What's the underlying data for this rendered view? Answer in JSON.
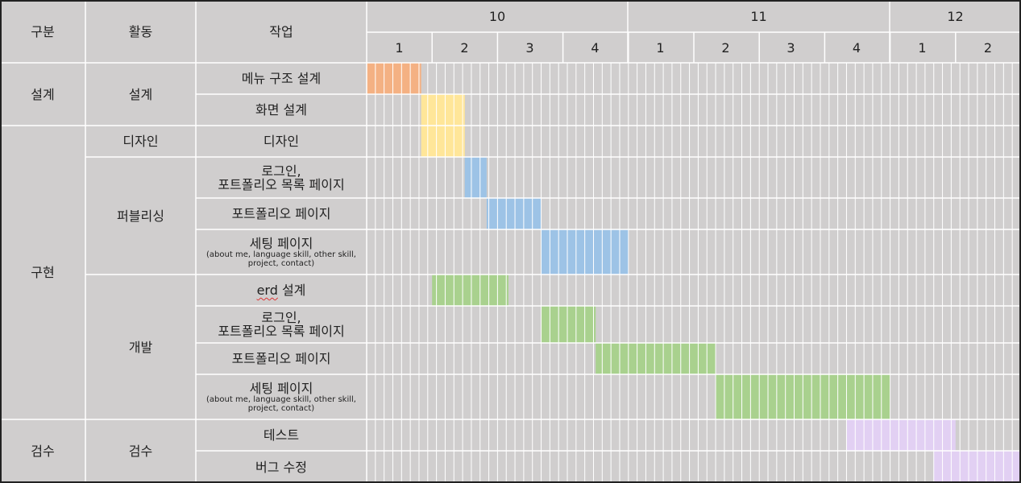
{
  "headers": {
    "category": "구분",
    "activity": "활동",
    "task": "작업"
  },
  "months": [
    {
      "label": "10",
      "weeks": [
        "1",
        "2",
        "3",
        "4"
      ]
    },
    {
      "label": "11",
      "weeks": [
        "1",
        "2",
        "3",
        "4"
      ]
    },
    {
      "label": "12",
      "weeks": [
        "1",
        "2"
      ]
    }
  ],
  "categories": [
    {
      "label": "설계"
    },
    {
      "label": "구현"
    },
    {
      "label": "검수"
    }
  ],
  "activities": [
    {
      "label": "설계"
    },
    {
      "label": "디자인"
    },
    {
      "label": "퍼블리싱"
    },
    {
      "label": "개발"
    },
    {
      "label": "검수"
    }
  ],
  "tasks": [
    {
      "label": "메뉴 구조 설계",
      "color": "#f4b183",
      "start": 0,
      "end": 2.5
    },
    {
      "label": "화면 설계",
      "color": "#ffe699",
      "start": 2.5,
      "end": 4.5
    },
    {
      "label": "디자인",
      "color": "#ffe699",
      "start": 2.5,
      "end": 4.5
    },
    {
      "label": "로그인,",
      "label2": "포트폴리오 목록 페이지",
      "color": "#9dc3e6",
      "start": 4.5,
      "end": 5.5
    },
    {
      "label": "포트폴리오 페이지",
      "color": "#9dc3e6",
      "start": 5.5,
      "end": 8
    },
    {
      "label": "세팅 페이지",
      "sub": "(about me, language skill, other skill,",
      "sub2": "project, contact)",
      "color": "#9dc3e6",
      "start": 8,
      "end": 12
    },
    {
      "label": "erd",
      "labelSuffix": " 설계",
      "color": "#a9d18e",
      "start": 3,
      "end": 6.5
    },
    {
      "label": "로그인,",
      "label2": "포트폴리오 목록 페이지",
      "color": "#a9d18e",
      "start": 8,
      "end": 10.5
    },
    {
      "label": "포트폴리오 페이지",
      "color": "#a9d18e",
      "start": 10.5,
      "end": 16
    },
    {
      "label": "세팅 페이지",
      "sub": "(about me, language skill, other skill,",
      "sub2": "project, contact)",
      "color": "#a9d18e",
      "start": 16,
      "end": 24
    },
    {
      "label": "테스트",
      "color": "#e2d0f3",
      "start": 22,
      "end": 27
    },
    {
      "label": "버그 수정",
      "color": "#e2d0f3",
      "start": 26,
      "end": 30
    }
  ],
  "colors": {
    "background": "#d0cece",
    "gridline": "#ffffff",
    "border": "#222222"
  }
}
